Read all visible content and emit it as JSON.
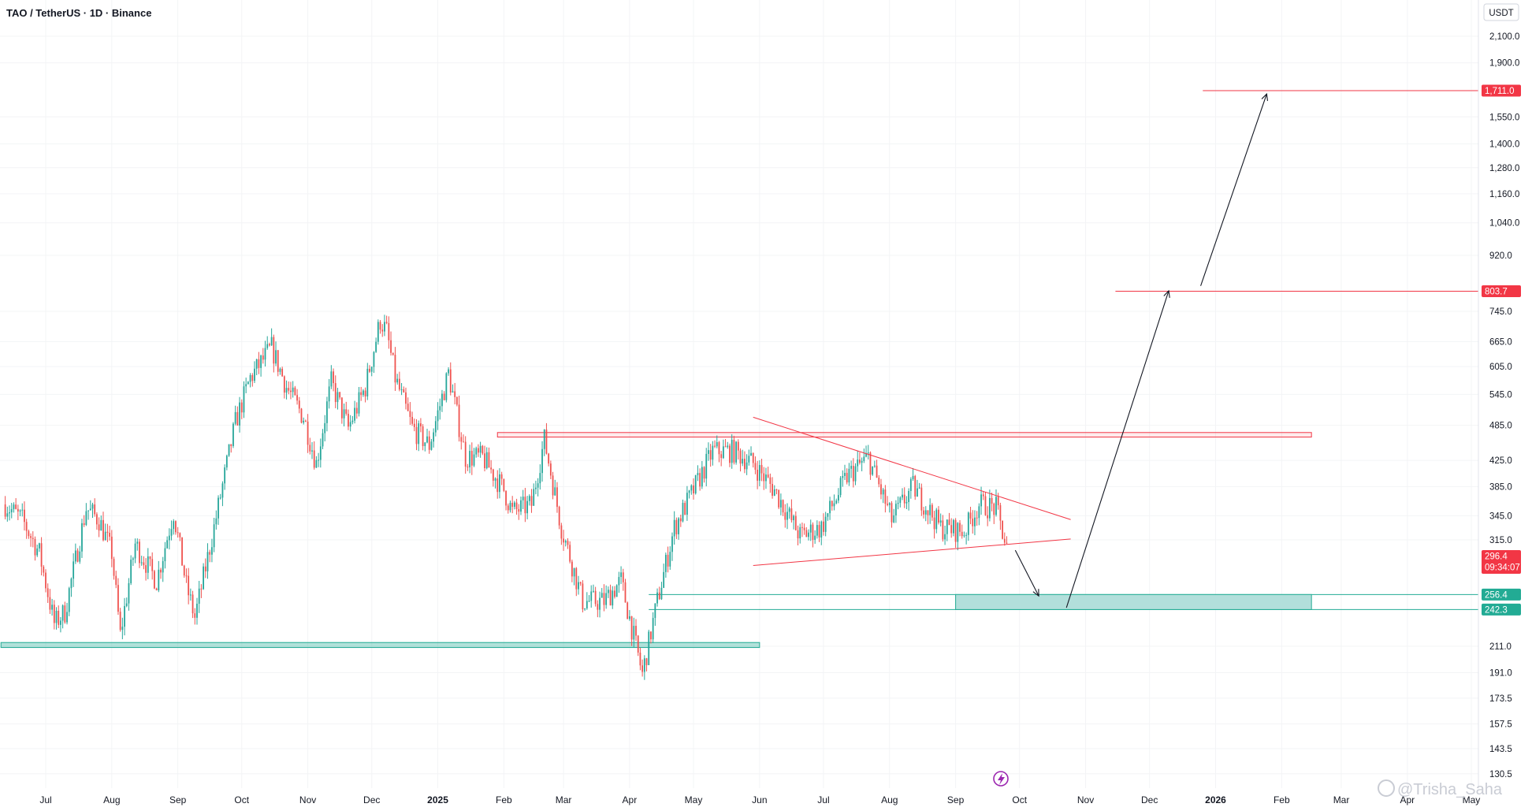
{
  "header": {
    "title": "TAO / TetherUS · 1D · Binance",
    "currency_button": "USDT"
  },
  "colors": {
    "up": "#26a69a",
    "down": "#ef5350",
    "resistance": "#f23645",
    "support": "#22ab94",
    "zone_fill": "#b2dfdb",
    "arrow": "#131722"
  },
  "price_labels": {
    "r1711": "1,711.0",
    "r803": "803.7",
    "current": "296.4",
    "countdown": "09:34:07",
    "s256": "256.4",
    "s242": "242.3"
  },
  "watermark": "@Trisha_Saha",
  "chart_data": {
    "type": "candlestick",
    "title": "TAO / TetherUS · 1D · Binance",
    "y_scale": "log",
    "ylim": [
      125,
      2400
    ],
    "y_ticks": [
      {
        "v": 2100,
        "label": "2,100.0"
      },
      {
        "v": 1900,
        "label": "1,900.0"
      },
      {
        "v": 1550,
        "label": "1,550.0"
      },
      {
        "v": 1400,
        "label": "1,400.0"
      },
      {
        "v": 1280,
        "label": "1,280.0"
      },
      {
        "v": 1160,
        "label": "1,160.0"
      },
      {
        "v": 1040,
        "label": "1,040.0"
      },
      {
        "v": 920,
        "label": "920.0"
      },
      {
        "v": 745,
        "label": "745.0"
      },
      {
        "v": 665,
        "label": "665.0"
      },
      {
        "v": 605,
        "label": "605.0"
      },
      {
        "v": 545,
        "label": "545.0"
      },
      {
        "v": 485,
        "label": "485.0"
      },
      {
        "v": 425,
        "label": "425.0"
      },
      {
        "v": 385,
        "label": "385.0"
      },
      {
        "v": 345,
        "label": "345.0"
      },
      {
        "v": 315,
        "label": "315.0"
      },
      {
        "v": 211,
        "label": "211.0"
      },
      {
        "v": 191,
        "label": "191.0"
      },
      {
        "v": 173.5,
        "label": "173.5"
      },
      {
        "v": 157.5,
        "label": "157.5"
      },
      {
        "v": 143.5,
        "label": "143.5"
      },
      {
        "v": 130.5,
        "label": "130.5"
      }
    ],
    "x_ticks": [
      {
        "date": "2024-07-01",
        "label": "Jul",
        "bold": false
      },
      {
        "date": "2024-08-01",
        "label": "Aug",
        "bold": false
      },
      {
        "date": "2024-09-01",
        "label": "Sep",
        "bold": false
      },
      {
        "date": "2024-10-01",
        "label": "Oct",
        "bold": false
      },
      {
        "date": "2024-11-01",
        "label": "Nov",
        "bold": false
      },
      {
        "date": "2024-12-01",
        "label": "Dec",
        "bold": false
      },
      {
        "date": "2025-01-01",
        "label": "2025",
        "bold": true
      },
      {
        "date": "2025-02-01",
        "label": "Feb",
        "bold": false
      },
      {
        "date": "2025-03-01",
        "label": "Mar",
        "bold": false
      },
      {
        "date": "2025-04-01",
        "label": "Apr",
        "bold": false
      },
      {
        "date": "2025-05-01",
        "label": "May",
        "bold": false
      },
      {
        "date": "2025-06-01",
        "label": "Jun",
        "bold": false
      },
      {
        "date": "2025-07-01",
        "label": "Jul",
        "bold": false
      },
      {
        "date": "2025-08-01",
        "label": "Aug",
        "bold": false
      },
      {
        "date": "2025-09-01",
        "label": "Sep",
        "bold": false
      },
      {
        "date": "2025-10-01",
        "label": "Oct",
        "bold": false
      },
      {
        "date": "2025-11-01",
        "label": "Nov",
        "bold": false
      },
      {
        "date": "2025-12-01",
        "label": "Dec",
        "bold": false
      },
      {
        "date": "2026-01-01",
        "label": "2026",
        "bold": true
      },
      {
        "date": "2026-02-01",
        "label": "Feb",
        "bold": false
      },
      {
        "date": "2026-03-01",
        "label": "Mar",
        "bold": false
      },
      {
        "date": "2026-04-01",
        "label": "Apr",
        "bold": false
      },
      {
        "date": "2026-05-01",
        "label": "May",
        "bold": false
      }
    ],
    "price_path": [
      {
        "date": "2024-06-12",
        "close": 360
      },
      {
        "date": "2024-06-20",
        "close": 340
      },
      {
        "date": "2024-06-28",
        "close": 300
      },
      {
        "date": "2024-07-05",
        "close": 230
      },
      {
        "date": "2024-07-10",
        "close": 240
      },
      {
        "date": "2024-07-20",
        "close": 355
      },
      {
        "date": "2024-07-26",
        "close": 340
      },
      {
        "date": "2024-08-01",
        "close": 300
      },
      {
        "date": "2024-08-05",
        "close": 220
      },
      {
        "date": "2024-08-12",
        "close": 310
      },
      {
        "date": "2024-08-22",
        "close": 270
      },
      {
        "date": "2024-08-30",
        "close": 350
      },
      {
        "date": "2024-09-05",
        "close": 265
      },
      {
        "date": "2024-09-09",
        "close": 235
      },
      {
        "date": "2024-09-18",
        "close": 330
      },
      {
        "date": "2024-09-28",
        "close": 490
      },
      {
        "date": "2024-10-05",
        "close": 580
      },
      {
        "date": "2024-10-15",
        "close": 650
      },
      {
        "date": "2024-10-22",
        "close": 560
      },
      {
        "date": "2024-10-30",
        "close": 500
      },
      {
        "date": "2024-11-05",
        "close": 420
      },
      {
        "date": "2024-11-12",
        "close": 570
      },
      {
        "date": "2024-11-20",
        "close": 480
      },
      {
        "date": "2024-11-28",
        "close": 560
      },
      {
        "date": "2024-12-05",
        "close": 720
      },
      {
        "date": "2024-12-08",
        "close": 690
      },
      {
        "date": "2024-12-12",
        "close": 580
      },
      {
        "date": "2024-12-20",
        "close": 480
      },
      {
        "date": "2024-12-28",
        "close": 450
      },
      {
        "date": "2025-01-06",
        "close": 590
      },
      {
        "date": "2025-01-14",
        "close": 430
      },
      {
        "date": "2025-01-22",
        "close": 430
      },
      {
        "date": "2025-02-01",
        "close": 380
      },
      {
        "date": "2025-02-05",
        "close": 350
      },
      {
        "date": "2025-02-14",
        "close": 360
      },
      {
        "date": "2025-02-20",
        "close": 460
      },
      {
        "date": "2025-02-28",
        "close": 330
      },
      {
        "date": "2025-03-10",
        "close": 250
      },
      {
        "date": "2025-03-20",
        "close": 250
      },
      {
        "date": "2025-03-28",
        "close": 270
      },
      {
        "date": "2025-04-07",
        "close": 190
      },
      {
        "date": "2025-04-14",
        "close": 250
      },
      {
        "date": "2025-04-22",
        "close": 330
      },
      {
        "date": "2025-05-01",
        "close": 380
      },
      {
        "date": "2025-05-10",
        "close": 440
      },
      {
        "date": "2025-05-20",
        "close": 440
      },
      {
        "date": "2025-05-29",
        "close": 420
      },
      {
        "date": "2025-06-08",
        "close": 380
      },
      {
        "date": "2025-06-20",
        "close": 320
      },
      {
        "date": "2025-06-30",
        "close": 330
      },
      {
        "date": "2025-07-12",
        "close": 400
      },
      {
        "date": "2025-07-22",
        "close": 430
      },
      {
        "date": "2025-08-02",
        "close": 340
      },
      {
        "date": "2025-08-12",
        "close": 385
      },
      {
        "date": "2025-08-25",
        "close": 330
      },
      {
        "date": "2025-09-05",
        "close": 325
      },
      {
        "date": "2025-09-12",
        "close": 360
      },
      {
        "date": "2025-09-20",
        "close": 355
      },
      {
        "date": "2025-09-26",
        "close": 296.4
      }
    ],
    "drawings": {
      "resistance_band": {
        "top": 472,
        "bottom": 464,
        "from": "2025-01-29",
        "to": "2026-02-15"
      },
      "support_band_2024": {
        "top": 214,
        "bottom": 210,
        "from": "2024-06-10",
        "to": "2025-06-01"
      },
      "demand_zone": {
        "top": 256.4,
        "bottom": 242.3,
        "from": "2025-04-10",
        "to": "2026-02-15",
        "filled_from": "2025-09-01"
      },
      "target_lines": [
        {
          "price": 803.7,
          "from": "2025-11-15"
        },
        {
          "price": 1711.0,
          "from": "2025-12-26"
        }
      ],
      "triangle_upper": {
        "from": {
          "date": "2025-05-29",
          "price": 500
        },
        "to": {
          "date": "2025-10-25",
          "price": 340
        }
      },
      "triangle_lower": {
        "from": {
          "date": "2025-05-29",
          "price": 286
        },
        "to": {
          "date": "2025-10-25",
          "price": 316
        }
      },
      "arrows": [
        {
          "from": {
            "date": "2025-09-29",
            "price": 303
          },
          "to": {
            "date": "2025-10-10",
            "price": 255
          }
        },
        {
          "from": {
            "date": "2025-10-23",
            "price": 244
          },
          "to": {
            "date": "2025-12-10",
            "price": 805
          }
        },
        {
          "from": {
            "date": "2025-12-25",
            "price": 820
          },
          "to": {
            "date": "2026-01-25",
            "price": 1690
          }
        }
      ]
    }
  }
}
